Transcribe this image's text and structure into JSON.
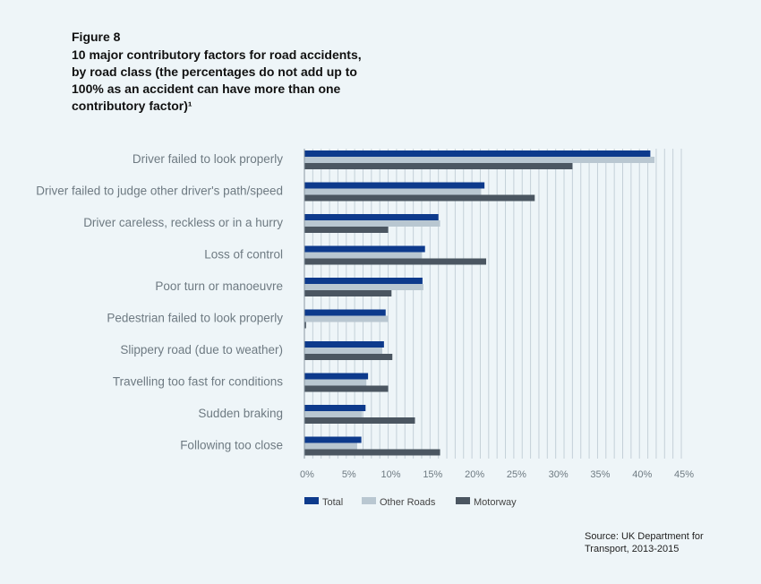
{
  "figure": {
    "label": "Figure 8",
    "title": "10 major contributory factors for road accidents, by road class (the percentages do not add up to 100% as an accident can have more than one contributory factor)¹"
  },
  "source": "Source: UK Department for Transport, 2013-2015",
  "chart_data": {
    "type": "bar",
    "orientation": "horizontal",
    "categories": [
      "Driver failed to look properly",
      "Driver failed to judge other driver's path/speed",
      "Driver careless, reckless or in a hurry",
      "Loss of control",
      "Poor turn or manoeuvre",
      "Pedestrian failed to look properly",
      "Slippery road (due to weather)",
      "Travelling too fast for conditions",
      "Sudden braking",
      "Following too close"
    ],
    "series": [
      {
        "name": "Total",
        "color": "#0d3a8c",
        "values": [
          41.3,
          21.5,
          16.0,
          14.4,
          14.1,
          9.7,
          9.5,
          7.6,
          7.3,
          6.8
        ]
      },
      {
        "name": "Other Roads",
        "color": "#b9c7d1",
        "values": [
          41.8,
          21.1,
          16.2,
          14.0,
          14.2,
          10.0,
          9.3,
          7.4,
          6.9,
          6.3
        ]
      },
      {
        "name": "Motorway",
        "color": "#4b5661",
        "values": [
          32.0,
          27.5,
          10.0,
          21.7,
          10.4,
          0.2,
          10.5,
          10.0,
          13.2,
          16.2
        ]
      }
    ],
    "xlim": [
      0,
      45
    ],
    "ticks": [
      "0%",
      "5%",
      "10%",
      "15%",
      "20%",
      "25%",
      "30%",
      "35%",
      "40%",
      "45%"
    ],
    "grid": true,
    "legend": "bottom"
  }
}
